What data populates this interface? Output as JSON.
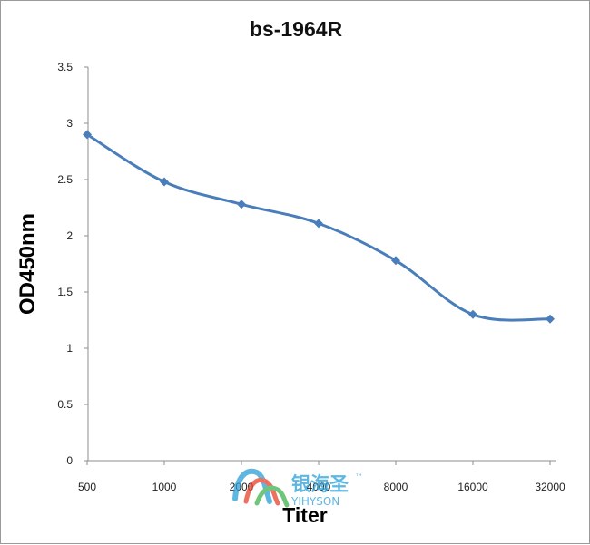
{
  "chart_data": {
    "type": "line",
    "title": "bs-1964R",
    "xlabel": "Titer",
    "ylabel": "OD450nm",
    "categories": [
      "500",
      "1000",
      "2000",
      "4000",
      "8000",
      "16000",
      "32000"
    ],
    "series": [
      {
        "values": [
          2.9,
          2.48,
          2.28,
          2.11,
          1.78,
          1.3,
          1.26
        ],
        "color": "#4a7ebb"
      }
    ],
    "ylim": [
      0,
      3.5
    ],
    "yticks": [
      "0",
      "0.5",
      "1",
      "1.5",
      "2",
      "2.5",
      "3",
      "3.5"
    ],
    "grid": false,
    "legend": "none",
    "marker": "diamond"
  },
  "watermark": {
    "name_cn": "银海圣",
    "tm": "™",
    "name_en": "YIHYSON",
    "logo_icon": "yihyson-logo-icon",
    "colors": [
      "#2aa0d8",
      "#e8412b",
      "#3fb34f"
    ]
  }
}
